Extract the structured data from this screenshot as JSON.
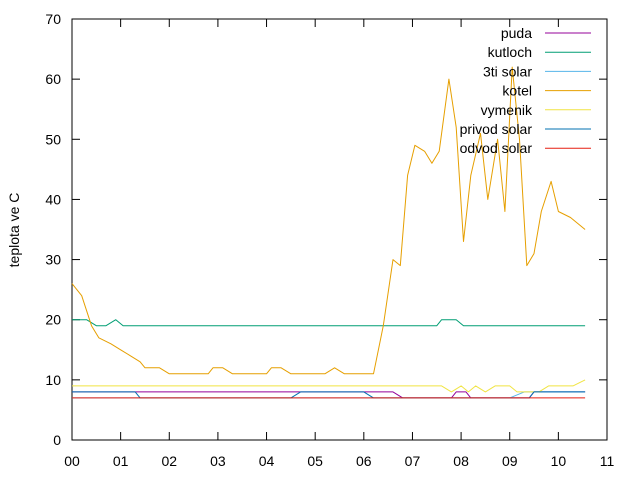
{
  "chart_data": {
    "type": "line",
    "title": "",
    "xlabel": "",
    "ylabel": "teplota ve C",
    "xlim": [
      0,
      11
    ],
    "ylim": [
      0,
      70
    ],
    "x_ticks": [
      {
        "value": 0,
        "label": "00"
      },
      {
        "value": 1,
        "label": "01"
      },
      {
        "value": 2,
        "label": "02"
      },
      {
        "value": 3,
        "label": "03"
      },
      {
        "value": 4,
        "label": "04"
      },
      {
        "value": 5,
        "label": "05"
      },
      {
        "value": 6,
        "label": "06"
      },
      {
        "value": 7,
        "label": "07"
      },
      {
        "value": 8,
        "label": "08"
      },
      {
        "value": 9,
        "label": "09"
      },
      {
        "value": 10,
        "label": "10"
      },
      {
        "value": 11,
        "label": "11"
      }
    ],
    "y_ticks": [
      0,
      10,
      20,
      30,
      40,
      50,
      60,
      70
    ],
    "grid": false,
    "legend_position": "top-right",
    "series": [
      {
        "name": "puda",
        "color": "#94009a",
        "points": [
          [
            0,
            8
          ],
          [
            2.0,
            8
          ],
          [
            3.0,
            8
          ],
          [
            4.0,
            8
          ],
          [
            5.0,
            8
          ],
          [
            6.0,
            8
          ],
          [
            6.6,
            8
          ],
          [
            6.8,
            7
          ],
          [
            7.8,
            7
          ],
          [
            7.9,
            8
          ],
          [
            8.1,
            8
          ],
          [
            8.2,
            7
          ],
          [
            9.4,
            7
          ],
          [
            9.5,
            8
          ],
          [
            10.0,
            8
          ],
          [
            10.55,
            8
          ]
        ]
      },
      {
        "name": "kutloch",
        "color": "#009e73",
        "points": [
          [
            0,
            20
          ],
          [
            0.3,
            20
          ],
          [
            0.5,
            19
          ],
          [
            0.7,
            19
          ],
          [
            0.9,
            20
          ],
          [
            1.05,
            19
          ],
          [
            2,
            19
          ],
          [
            3,
            19
          ],
          [
            4,
            19
          ],
          [
            5,
            19
          ],
          [
            6,
            19
          ],
          [
            7,
            19
          ],
          [
            7.5,
            19
          ],
          [
            7.6,
            20
          ],
          [
            7.9,
            20
          ],
          [
            8.05,
            19
          ],
          [
            9,
            19
          ],
          [
            10,
            19
          ],
          [
            10.55,
            19
          ]
        ]
      },
      {
        "name": "3ti solar",
        "color": "#56b4e9",
        "points": [
          [
            0,
            7
          ],
          [
            1,
            7
          ],
          [
            2,
            7
          ],
          [
            3,
            7
          ],
          [
            4,
            7
          ],
          [
            5,
            7
          ],
          [
            6,
            7
          ],
          [
            7,
            7
          ],
          [
            8,
            7
          ],
          [
            9,
            7
          ],
          [
            9.3,
            8
          ],
          [
            10,
            8
          ],
          [
            10.55,
            8
          ]
        ]
      },
      {
        "name": "kotel",
        "color": "#e69f00",
        "points": [
          [
            0,
            26
          ],
          [
            0.2,
            24
          ],
          [
            0.4,
            19
          ],
          [
            0.55,
            17
          ],
          [
            0.8,
            16
          ],
          [
            1.0,
            15
          ],
          [
            1.2,
            14
          ],
          [
            1.4,
            13
          ],
          [
            1.5,
            12
          ],
          [
            1.7,
            12
          ],
          [
            1.8,
            12
          ],
          [
            2.0,
            11
          ],
          [
            2.2,
            11
          ],
          [
            2.5,
            11
          ],
          [
            2.8,
            11
          ],
          [
            2.9,
            12
          ],
          [
            3.1,
            12
          ],
          [
            3.3,
            11
          ],
          [
            3.6,
            11
          ],
          [
            4.0,
            11
          ],
          [
            4.1,
            12
          ],
          [
            4.3,
            12
          ],
          [
            4.5,
            11
          ],
          [
            4.8,
            11
          ],
          [
            5.2,
            11
          ],
          [
            5.4,
            12
          ],
          [
            5.6,
            11
          ],
          [
            6.0,
            11
          ],
          [
            6.2,
            11
          ],
          [
            6.4,
            19
          ],
          [
            6.6,
            30
          ],
          [
            6.75,
            29
          ],
          [
            6.9,
            44
          ],
          [
            7.05,
            49
          ],
          [
            7.25,
            48
          ],
          [
            7.4,
            46
          ],
          [
            7.55,
            48
          ],
          [
            7.75,
            60
          ],
          [
            7.9,
            52
          ],
          [
            8.05,
            33
          ],
          [
            8.2,
            44
          ],
          [
            8.4,
            51
          ],
          [
            8.55,
            40
          ],
          [
            8.75,
            50
          ],
          [
            8.9,
            38
          ],
          [
            9.05,
            62
          ],
          [
            9.2,
            50
          ],
          [
            9.35,
            29
          ],
          [
            9.5,
            31
          ],
          [
            9.65,
            38
          ],
          [
            9.85,
            43
          ],
          [
            10.0,
            38
          ],
          [
            10.25,
            37
          ],
          [
            10.55,
            35
          ]
        ]
      },
      {
        "name": "vymenik",
        "color": "#f0e442",
        "points": [
          [
            0,
            9
          ],
          [
            1,
            9
          ],
          [
            2,
            9
          ],
          [
            3,
            9
          ],
          [
            4,
            9
          ],
          [
            5,
            9
          ],
          [
            6,
            9
          ],
          [
            7,
            9
          ],
          [
            7.6,
            9
          ],
          [
            7.8,
            8
          ],
          [
            8.0,
            9
          ],
          [
            8.15,
            8
          ],
          [
            8.3,
            9
          ],
          [
            8.5,
            8
          ],
          [
            8.7,
            9
          ],
          [
            9.0,
            9
          ],
          [
            9.15,
            8
          ],
          [
            9.6,
            8
          ],
          [
            9.8,
            9
          ],
          [
            10.3,
            9
          ],
          [
            10.55,
            10
          ]
        ]
      },
      {
        "name": "privod solar",
        "color": "#0072b2",
        "points": [
          [
            0,
            8
          ],
          [
            1.3,
            8
          ],
          [
            1.4,
            7
          ],
          [
            2.0,
            7
          ],
          [
            4.3,
            7
          ],
          [
            4.5,
            7
          ],
          [
            4.7,
            8
          ],
          [
            5.0,
            8
          ],
          [
            6.0,
            8
          ],
          [
            6.2,
            7
          ],
          [
            6.8,
            7
          ],
          [
            7.0,
            7
          ],
          [
            8.0,
            7
          ],
          [
            9.0,
            7
          ],
          [
            9.4,
            7
          ],
          [
            9.5,
            8
          ],
          [
            10.0,
            8
          ],
          [
            10.55,
            8
          ]
        ]
      },
      {
        "name": "odvod solar",
        "color": "#e51e10",
        "points": [
          [
            0,
            7
          ],
          [
            1,
            7
          ],
          [
            2,
            7
          ],
          [
            3,
            7
          ],
          [
            4,
            7
          ],
          [
            5,
            7
          ],
          [
            6,
            7
          ],
          [
            7,
            7
          ],
          [
            8,
            7
          ],
          [
            9,
            7
          ],
          [
            10,
            7
          ],
          [
            10.55,
            7
          ]
        ]
      }
    ]
  }
}
